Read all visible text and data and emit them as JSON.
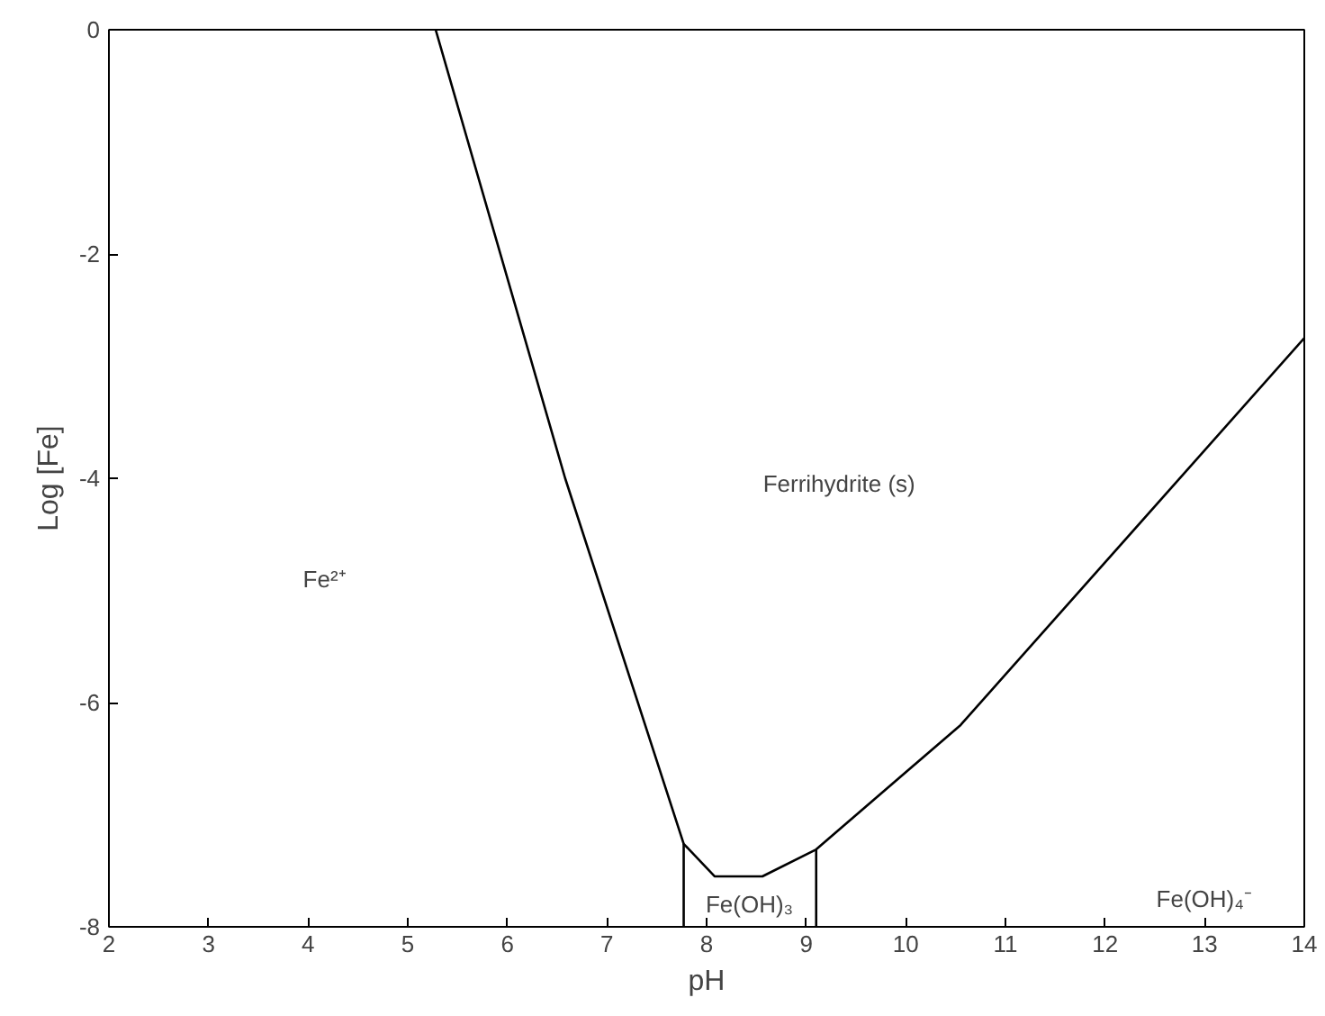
{
  "chart_data": {
    "type": "line",
    "xlabel": "pH",
    "ylabel": "Log [Fe]",
    "xlim": [
      2,
      14
    ],
    "ylim": [
      -8,
      0
    ],
    "xticks": [
      2,
      3,
      4,
      5,
      6,
      7,
      8,
      9,
      10,
      11,
      12,
      13,
      14
    ],
    "yticks": [
      -8,
      -6,
      -4,
      -2,
      0
    ],
    "grid": false,
    "marker": "none",
    "line_style": "solid",
    "series": [
      {
        "color": "#000000",
        "x": [
          5.28,
          6.58,
          7.77,
          8.08,
          8.56,
          9.1,
          10.55,
          14
        ],
        "values": [
          0,
          -4,
          -7.26,
          -7.55,
          -7.55,
          -7.31,
          -6.2,
          -2.75
        ]
      },
      {
        "color": "#000000",
        "x": [
          7.77,
          7.77
        ],
        "values": [
          -7.26,
          -8
        ]
      },
      {
        "color": "#000000",
        "x": [
          9.1,
          9.1
        ],
        "values": [
          -7.31,
          -8
        ]
      }
    ],
    "annotations": [
      "Ferrihydrite (s)",
      "Fe²⁺",
      "Fe(OH)₃",
      "Fe(OH)₄⁻"
    ]
  }
}
